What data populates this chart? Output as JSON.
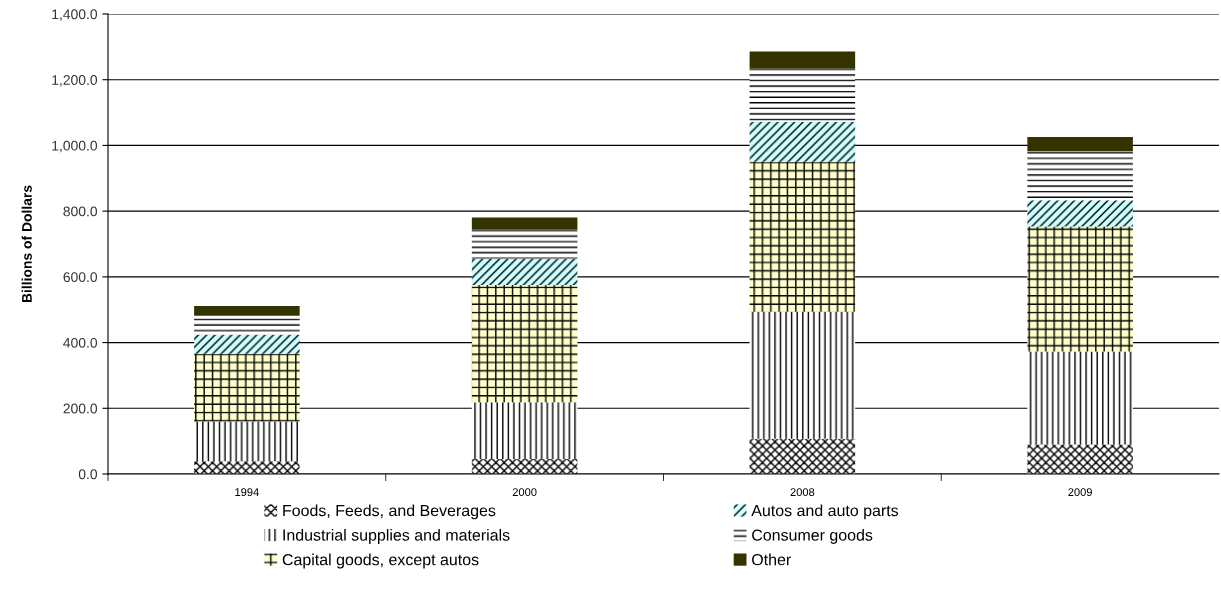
{
  "chart_data": {
    "type": "bar",
    "stacked": true,
    "ylabel": "Billions of Dollars",
    "categories": [
      "1994",
      "2000",
      "2008",
      "2009"
    ],
    "series": [
      {
        "name": "Foods, Feeds, and Beverages",
        "color": "#ffffff",
        "values": [
          39,
          46,
          107,
          90
        ]
      },
      {
        "name": "Industrial supplies and materials",
        "color": "#ffffff",
        "values": [
          121,
          172,
          387,
          283
        ]
      },
      {
        "name": "Capital goods, except autos",
        "color": "#ffffcc",
        "values": [
          206,
          357,
          456,
          380
        ]
      },
      {
        "name": "Autos and auto parts",
        "color": "#ccffff",
        "values": [
          58,
          80,
          122,
          80
        ]
      },
      {
        "name": "Consumer goods",
        "color": "#ffffff",
        "values": [
          58,
          88,
          161,
          149
        ]
      },
      {
        "name": "Other",
        "color": "#333300",
        "values": [
          29,
          38,
          53,
          44
        ]
      }
    ],
    "ylim": [
      0,
      1400
    ],
    "yticks": [
      {
        "value": 0,
        "label": "0.0"
      },
      {
        "value": 200,
        "label": "200.0"
      },
      {
        "value": 400,
        "label": "400.0"
      },
      {
        "value": 600,
        "label": "600.0"
      },
      {
        "value": 800,
        "label": "800.0"
      },
      {
        "value": 1000,
        "label": "1,000.0"
      },
      {
        "value": 1200,
        "label": "1,200.0"
      },
      {
        "value": 1400,
        "label": "1,400.0"
      }
    ],
    "grid": "y",
    "legend": "bottom"
  }
}
